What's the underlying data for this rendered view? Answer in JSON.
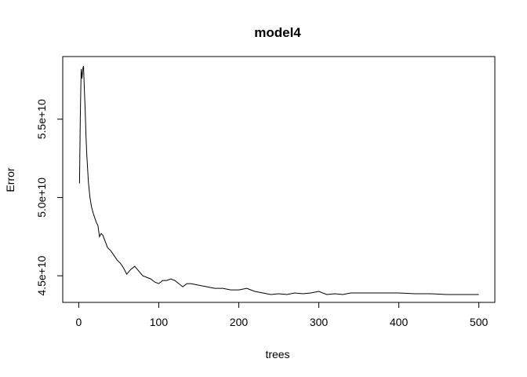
{
  "chart_data": {
    "type": "line",
    "title": "model4",
    "xlabel": "trees",
    "ylabel": "Error",
    "xlim": [
      -20,
      520
    ],
    "ylim": [
      43300000000.0,
      59000000000.0
    ],
    "x_ticks": [
      0,
      100,
      200,
      300,
      400,
      500
    ],
    "x_tick_labels": [
      "0",
      "100",
      "200",
      "300",
      "400",
      "500"
    ],
    "y_ticks": [
      45000000000.0,
      50000000000.0,
      55000000000.0
    ],
    "y_tick_labels": [
      "4.5e+10",
      "5.0e+10",
      "5.5e+10"
    ],
    "grid": false,
    "legend": "none",
    "line_color": "#000000",
    "series": [
      {
        "x": [
          1,
          2,
          3,
          4,
          5,
          6,
          7,
          8,
          9,
          10,
          12,
          14,
          16,
          18,
          20,
          22,
          24,
          26,
          28,
          30,
          33,
          36,
          40,
          44,
          48,
          52,
          56,
          60,
          65,
          70,
          75,
          80,
          85,
          90,
          95,
          100,
          105,
          110,
          115,
          120,
          125,
          130,
          135,
          140,
          150,
          160,
          170,
          180,
          190,
          200,
          210,
          220,
          230,
          240,
          250,
          260,
          270,
          280,
          290,
          300,
          310,
          320,
          330,
          340,
          350,
          360,
          380,
          400,
          420,
          440,
          460,
          480,
          500
        ],
        "y": [
          50900000000.0,
          55200000000.0,
          58200000000.0,
          57600000000.0,
          58200000000.0,
          58400000000.0,
          57000000000.0,
          55600000000.0,
          54000000000.0,
          52800000000.0,
          51000000000.0,
          50000000000.0,
          49400000000.0,
          49000000000.0,
          48700000000.0,
          48400000000.0,
          48200000000.0,
          47500000000.0,
          47700000000.0,
          47600000000.0,
          47200000000.0,
          46800000000.0,
          46600000000.0,
          46300000000.0,
          46000000000.0,
          45800000000.0,
          45500000000.0,
          45100000000.0,
          45400000000.0,
          45600000000.0,
          45300000000.0,
          45000000000.0,
          44900000000.0,
          44800000000.0,
          44600000000.0,
          44500000000.0,
          44700000000.0,
          44700000000.0,
          44800000000.0,
          44700000000.0,
          44500000000.0,
          44300000000.0,
          44500000000.0,
          44500000000.0,
          44400000000.0,
          44300000000.0,
          44200000000.0,
          44200000000.0,
          44100000000.0,
          44100000000.0,
          44200000000.0,
          44000000000.0,
          43900000000.0,
          43800000000.0,
          43850000000.0,
          43800000000.0,
          43900000000.0,
          43850000000.0,
          43900000000.0,
          44000000000.0,
          43800000000.0,
          43850000000.0,
          43800000000.0,
          43900000000.0,
          43900000000.0,
          43900000000.0,
          43900000000.0,
          43900000000.0,
          43850000000.0,
          43850000000.0,
          43800000000.0,
          43800000000.0,
          43800000000.0
        ]
      }
    ]
  }
}
